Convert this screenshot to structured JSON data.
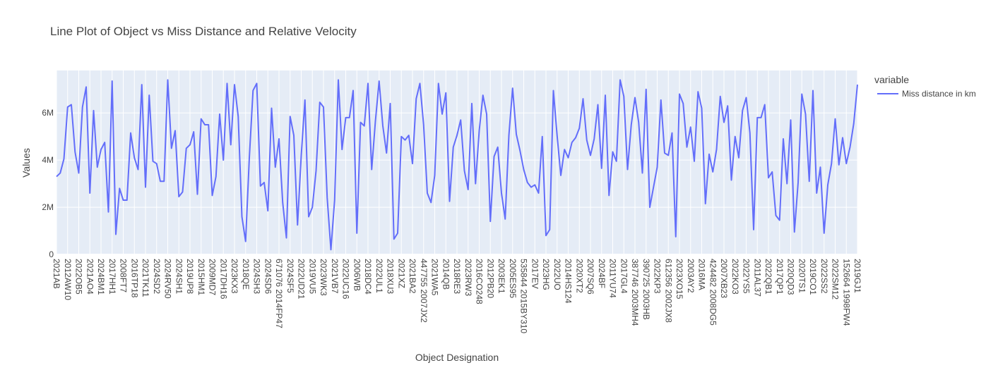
{
  "chart_data": {
    "type": "line",
    "title": "Line Plot of Object vs Miss Distance and Relative Velocity",
    "xlabel": "Object Designation",
    "ylabel": "Values",
    "ylim": [
      0,
      7800000
    ],
    "yticks": [
      0,
      2000000,
      4000000,
      6000000
    ],
    "ytick_labels": [
      "0",
      "2M",
      "4M",
      "6M"
    ],
    "legend": {
      "title": "variable",
      "position": "top-right"
    },
    "colors": {
      "line": "#636efa",
      "plot_bg": "#e5ecf6",
      "grid": "#ffffff"
    },
    "x_labels": [
      "2021AB",
      "2012AW10",
      "2022OB5",
      "2021AO4",
      "2024BM1",
      "2017HH1",
      "2008FT7",
      "2016TP18",
      "2021TK11",
      "2024SD2",
      "2024RV50",
      "2024SH1",
      "2019UP8",
      "2015HM1",
      "2009MD7",
      "2017DH16",
      "2023KX3",
      "2018QE",
      "2024SH3",
      "2024SD6",
      "671076 2014FP47",
      "2024SF5",
      "2022UD21",
      "2019VU5",
      "2023WK3",
      "2021VB7",
      "2022UC16",
      "2006WB",
      "2018DC4",
      "2022UL1",
      "2018XU3",
      "2021XZ",
      "2021BA2",
      "447755 2007JX2",
      "2021WA5",
      "2014QB",
      "2018RE3",
      "2023RW3",
      "2016CO248",
      "2012PB20",
      "2003EK1",
      "2005ES95",
      "535844 2015BY310",
      "2017EV",
      "2023HG",
      "2022UO",
      "2014HS124",
      "2020XT2",
      "2007SQ6",
      "2024BF",
      "2011YU74",
      "2017GL4",
      "387746 2003MH4",
      "390725 2003HB",
      "2022KP3",
      "612356 2002JX8",
      "2023XO15",
      "2003AY2",
      "2016MA",
      "424482 2008DG5",
      "2007XB23",
      "2022KO3",
      "2022YS5",
      "2011AL37",
      "2022QB1",
      "2017QP1",
      "2020QD3",
      "2020TS1",
      "2019CO1",
      "2022SS2",
      "2022SM12",
      "152664 1998FW4",
      "2019GJ1"
    ],
    "series": [
      {
        "name": "Miss distance in km",
        "values": [
          3300000,
          3450000,
          4050000,
          6250000,
          6350000,
          4350000,
          3450000,
          6250000,
          7100000,
          2600000,
          6100000,
          3700000,
          4450000,
          4750000,
          1800000,
          7350000,
          850000,
          2800000,
          2300000,
          2300000,
          5150000,
          4100000,
          3600000,
          7200000,
          2850000,
          6750000,
          3950000,
          3850000,
          3100000,
          3100000,
          7400000,
          4500000,
          5250000,
          2450000,
          2650000,
          4500000,
          4650000,
          5200000,
          2550000,
          5750000,
          5500000,
          5500000,
          2500000,
          3300000,
          5950000,
          4000000,
          7250000,
          4650000,
          7200000,
          5850000,
          1600000,
          550000,
          4100000,
          6950000,
          7250000,
          2900000,
          3050000,
          1850000,
          6200000,
          3700000,
          4900000,
          2200000,
          700000,
          5850000,
          5050000,
          1250000,
          4200000,
          6550000,
          1600000,
          2000000,
          3550000,
          6450000,
          6250000,
          2400000,
          200000,
          2300000,
          7400000,
          4450000,
          5800000,
          5800000,
          6950000,
          900000,
          5600000,
          5450000,
          7250000,
          3600000,
          5650000,
          7350000,
          5450000,
          4300000,
          6400000,
          650000,
          900000,
          5000000,
          4850000,
          5050000,
          3850000,
          6600000,
          7250000,
          5500000,
          2600000,
          2200000,
          3350000,
          7250000,
          5950000,
          6850000,
          2250000,
          4550000,
          5050000,
          5700000,
          3550000,
          2750000,
          6400000,
          3000000,
          5250000,
          6750000,
          5950000,
          1400000,
          4150000,
          4550000,
          2600000,
          1500000,
          5050000,
          7050000,
          5100000,
          4400000,
          3600000,
          3050000,
          2850000,
          2950000,
          2600000,
          5000000,
          800000,
          1050000,
          6950000,
          5050000,
          3350000,
          4450000,
          4100000,
          4750000,
          4950000,
          5350000,
          6600000,
          4850000,
          4200000,
          4900000,
          6350000,
          3650000,
          6750000,
          2500000,
          4350000,
          3950000,
          7400000,
          6700000,
          3600000,
          5500000,
          6650000,
          5600000,
          3450000,
          7000000,
          2000000,
          2850000,
          3700000,
          6550000,
          4300000,
          4200000,
          5150000,
          750000,
          6800000,
          6400000,
          4550000,
          5400000,
          3950000,
          6900000,
          6200000,
          2150000,
          4250000,
          3500000,
          4450000,
          6700000,
          5600000,
          6300000,
          3150000,
          5000000,
          4100000,
          6100000,
          6650000,
          5150000,
          1050000,
          5800000,
          5800000,
          6350000,
          3250000,
          3500000,
          1650000,
          1450000,
          4900000,
          3000000,
          5700000,
          950000,
          3050000,
          6800000,
          5950000,
          3100000,
          6950000,
          2600000,
          3700000,
          900000,
          2950000,
          3850000,
          5750000,
          3800000,
          4950000,
          3850000,
          4550000,
          5550000,
          7200000
        ]
      }
    ]
  }
}
